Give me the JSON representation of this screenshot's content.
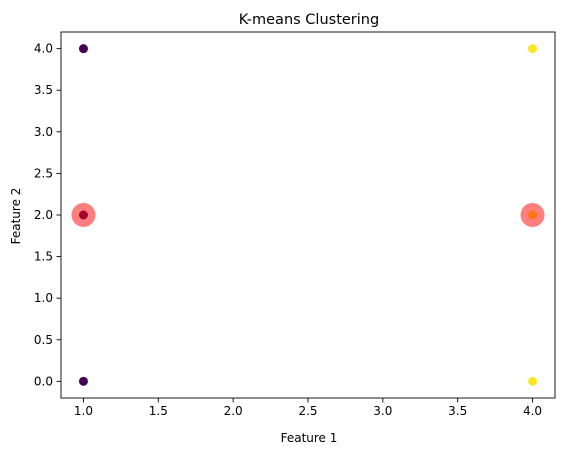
{
  "chart_data": {
    "type": "scatter",
    "title": "K-means Clustering",
    "xlabel": "Feature 1",
    "ylabel": "Feature 2",
    "xlim": [
      0.85,
      4.15
    ],
    "ylim": [
      -0.2,
      4.2
    ],
    "xticks": [
      1.0,
      1.5,
      2.0,
      2.5,
      3.0,
      3.5,
      4.0
    ],
    "xtick_labels": [
      "1.0",
      "1.5",
      "2.0",
      "2.5",
      "3.0",
      "3.5",
      "4.0"
    ],
    "yticks": [
      0.0,
      0.5,
      1.0,
      1.5,
      2.0,
      2.5,
      3.0,
      3.5,
      4.0
    ],
    "ytick_labels": [
      "0.0",
      "0.5",
      "1.0",
      "1.5",
      "2.0",
      "2.5",
      "3.0",
      "3.5",
      "4.0"
    ],
    "grid": false,
    "points": [
      {
        "x": 1,
        "y": 2,
        "cluster": 0
      },
      {
        "x": 1,
        "y": 4,
        "cluster": 0
      },
      {
        "x": 1,
        "y": 0,
        "cluster": 0
      },
      {
        "x": 4,
        "y": 2,
        "cluster": 1
      },
      {
        "x": 4,
        "y": 4,
        "cluster": 1
      },
      {
        "x": 4,
        "y": 0,
        "cluster": 1
      }
    ],
    "centroids": [
      {
        "x": 1,
        "y": 2
      },
      {
        "x": 4,
        "y": 2
      }
    ],
    "cluster_colors": [
      "#440154",
      "#fde725"
    ],
    "centroid_color": "#ff0000",
    "centroid_alpha": 0.5
  }
}
